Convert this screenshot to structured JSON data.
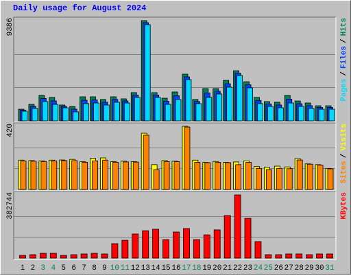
{
  "chart_data": [
    {
      "type": "bar",
      "title": "Daily usage for August 2024",
      "series": [
        {
          "name": "Hits",
          "color": "#00805c",
          "values": [
            1090,
            1540,
            2380,
            2190,
            1480,
            1350,
            2250,
            2250,
            2000,
            2250,
            2060,
            2640,
            9386,
            2640,
            2120,
            2700,
            4370,
            2000,
            3020,
            3020,
            3790,
            4690,
            3660,
            2190,
            1800,
            1740,
            2380,
            1860,
            1670,
            1410,
            1410
          ]
        },
        {
          "name": "Files",
          "color": "#0040ff",
          "values": [
            995,
            1350,
            2090,
            1865,
            1350,
            1095,
            1930,
            1960,
            1740,
            1995,
            1865,
            2415,
            9190,
            2415,
            1830,
            2350,
            4115,
            1805,
            2605,
            2765,
            3470,
            4465,
            3375,
            1900,
            1575,
            1480,
            2025,
            1605,
            1415,
            1250,
            1250
          ]
        },
        {
          "name": "Pages",
          "color": "#00d8ff",
          "values": [
            900,
            1160,
            1800,
            1540,
            1220,
            840,
            1610,
            1670,
            1480,
            1740,
            1670,
            2190,
            9000,
            2190,
            1540,
            2000,
            3860,
            1610,
            2190,
            2510,
            3150,
            4240,
            3090,
            1610,
            1350,
            1220,
            1670,
            1350,
            1160,
            1090,
            1090
          ]
        }
      ],
      "ylim": [
        0,
        9386
      ],
      "yticks": [
        9386
      ],
      "grid_lines": [
        3129,
        6257
      ],
      "legend_separator": "/"
    },
    {
      "type": "bar",
      "series": [
        {
          "name": "Visits",
          "color": "#ffff00",
          "values": [
            195,
            192,
            190,
            195,
            196,
            200,
            185,
            207,
            210,
            185,
            188,
            185,
            374,
            165,
            192,
            188,
            420,
            195,
            180,
            186,
            180,
            183,
            190,
            152,
            148,
            155,
            150,
            205,
            170,
            165,
            140
          ]
        },
        {
          "name": "Sites",
          "color": "#ff8000",
          "values": [
            190,
            188,
            186,
            190,
            192,
            192,
            181,
            190,
            195,
            181,
            183,
            182,
            361,
            132,
            185,
            185,
            415,
            180,
            178,
            180,
            178,
            165,
            180,
            140,
            132,
            140,
            138,
            196,
            168,
            162,
            137
          ]
        }
      ],
      "ylim": [
        0,
        420
      ],
      "yticks": [
        420
      ],
      "grid_lines": [
        140,
        280
      ],
      "legend_separator": "/"
    },
    {
      "type": "bar",
      "categories": [
        "1",
        "2",
        "3",
        "4",
        "5",
        "6",
        "7",
        "8",
        "9",
        "10",
        "11",
        "12",
        "13",
        "14",
        "15",
        "16",
        "17",
        "18",
        "19",
        "20",
        "21",
        "22",
        "23",
        "24",
        "25",
        "26",
        "27",
        "28",
        "29",
        "30",
        "31"
      ],
      "category_colors": [
        "#000000",
        "#000000",
        "#00805c",
        "#00805c",
        "#000000",
        "#000000",
        "#000000",
        "#000000",
        "#000000",
        "#00805c",
        "#00805c",
        "#000000",
        "#000000",
        "#000000",
        "#000000",
        "#000000",
        "#00805c",
        "#00805c",
        "#000000",
        "#000000",
        "#000000",
        "#000000",
        "#000000",
        "#00805c",
        "#00805c",
        "#000000",
        "#000000",
        "#000000",
        "#000000",
        "#000000",
        "#00805c"
      ],
      "series": [
        {
          "name": "KBytes",
          "color": "#ff0000",
          "values": [
            16600,
            20800,
            29100,
            29100,
            16600,
            20800,
            25000,
            29100,
            25000,
            87400,
            108000,
            146000,
            166000,
            175000,
            112000,
            158000,
            179000,
            112000,
            141000,
            171000,
            258000,
            382744,
            241000,
            100000,
            20800,
            20800,
            25000,
            25000,
            20800,
            25000,
            25000
          ]
        }
      ],
      "ylim": [
        0,
        382744
      ],
      "yticks": [
        382744
      ],
      "grid_lines": [
        127581,
        255163
      ]
    }
  ]
}
